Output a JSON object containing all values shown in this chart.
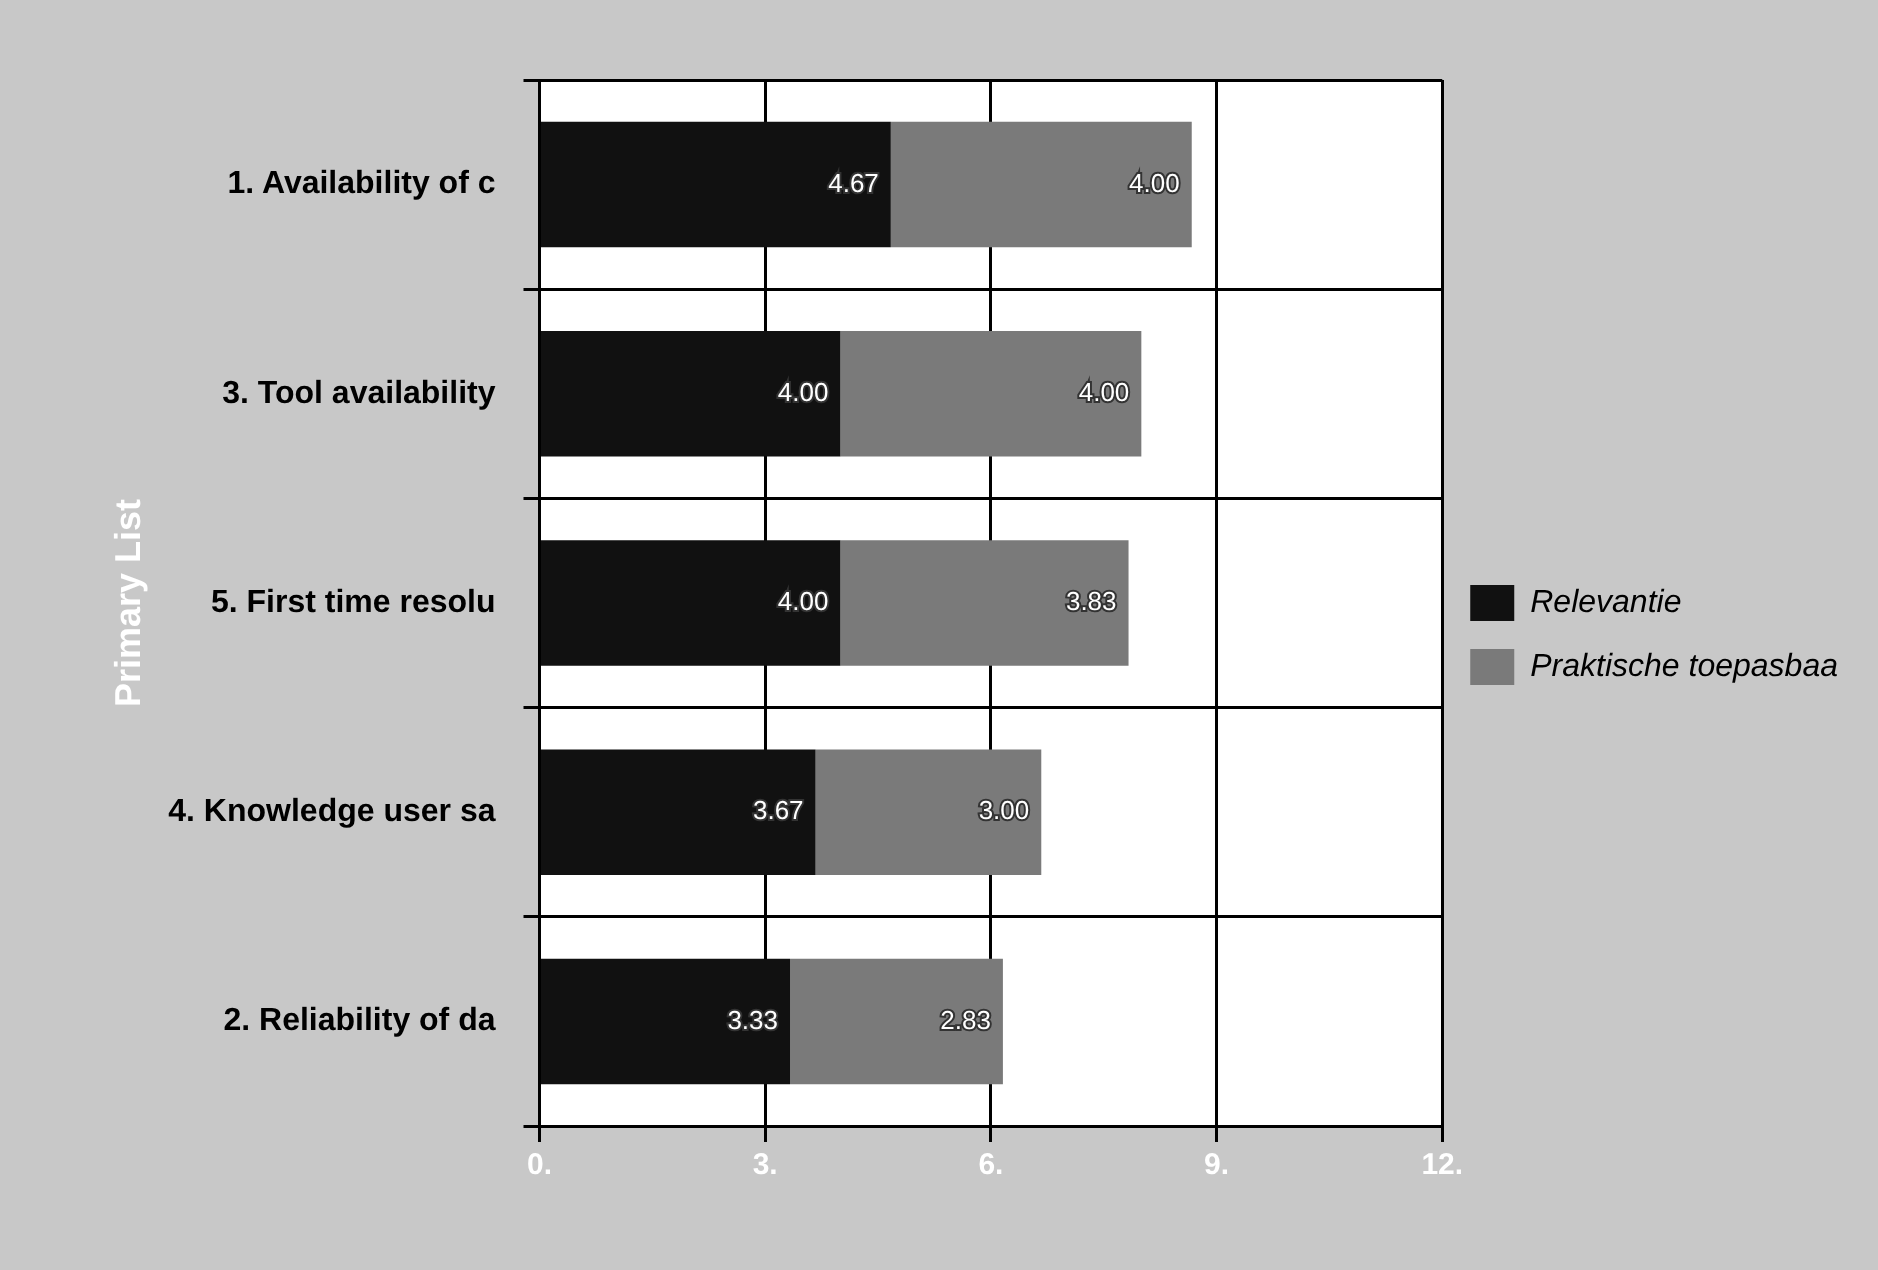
{
  "chart_data": {
    "type": "bar",
    "orientation": "horizontal",
    "stacked": true,
    "ylabel": "Primary List",
    "categories": [
      "1. Availability of c",
      "3. Tool availability",
      "5. First time resolu",
      "4. Knowledge user sa",
      "2. Reliability of da"
    ],
    "series": [
      {
        "name": "Relevantie",
        "color": "#111111",
        "values": [
          4.67,
          4.0,
          4.0,
          3.67,
          3.33
        ],
        "value_labels": [
          "4.67",
          "4.00",
          "4.00",
          "3.67",
          "3.33"
        ]
      },
      {
        "name": "Praktische toepasbaa",
        "color": "#7a7a7a",
        "values": [
          4.0,
          4.0,
          3.83,
          3.0,
          2.83
        ],
        "value_labels": [
          "4.00",
          "4.00",
          "3.83",
          "3.00",
          "2.83"
        ]
      }
    ],
    "xlim": [
      0,
      12
    ],
    "xticks": [
      {
        "value": 0,
        "label": "0."
      },
      {
        "value": 3,
        "label": "3."
      },
      {
        "value": 6,
        "label": "6."
      },
      {
        "value": 9,
        "label": "9."
      },
      {
        "value": 12,
        "label": "12."
      }
    ],
    "grid": true,
    "legend": "right"
  }
}
